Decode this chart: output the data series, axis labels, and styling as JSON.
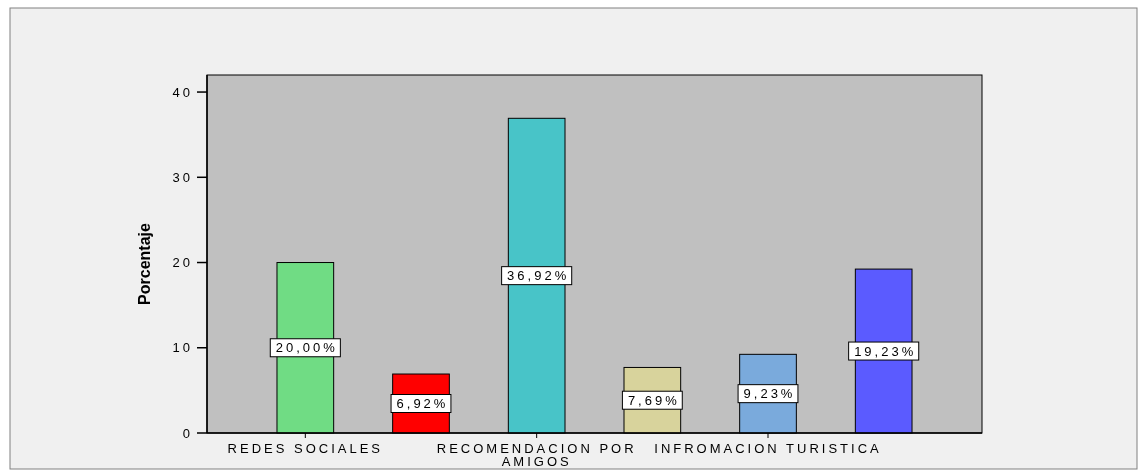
{
  "chart_data": {
    "type": "bar",
    "ylabel": "Porcentaje",
    "categories": [
      "REDES SOCIALES",
      null,
      "RECOMENDACION POR AMIGOS",
      null,
      "INFROMACION TURISTICA",
      null
    ],
    "values": [
      20.0,
      6.92,
      36.92,
      7.69,
      9.23,
      19.23
    ],
    "value_labels": [
      "20,00%",
      "6,92%",
      "36,92%",
      "7,69%",
      "9,23%",
      "19,23%"
    ],
    "colors": [
      "#70dc84",
      "#ff0000",
      "#48c4c8",
      "#d8d39c",
      "#7aaadc",
      "#5b5bff"
    ],
    "ylim": [
      0,
      42
    ],
    "yticks": [
      0,
      10,
      20,
      30,
      40
    ],
    "grid": false
  }
}
